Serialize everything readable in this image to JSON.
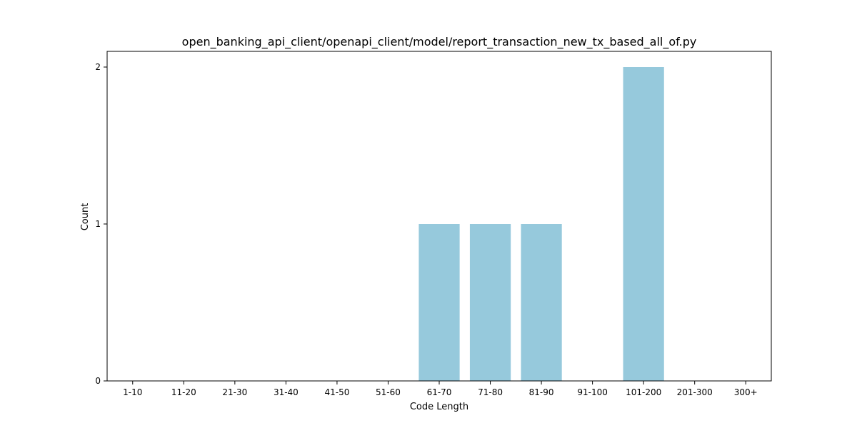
{
  "chart_data": {
    "type": "bar",
    "title": "open_banking_api_client/openapi_client/model/report_transaction_new_tx_based_all_of.py",
    "xlabel": "Code Length",
    "ylabel": "Count",
    "categories": [
      "1-10",
      "11-20",
      "21-30",
      "31-40",
      "41-50",
      "51-60",
      "61-70",
      "71-80",
      "81-90",
      "91-100",
      "101-200",
      "201-300",
      "300+"
    ],
    "values": [
      0,
      0,
      0,
      0,
      0,
      0,
      1,
      1,
      1,
      0,
      2,
      0,
      0
    ],
    "ylim": [
      0,
      2.1
    ],
    "yticks": [
      0,
      1,
      2
    ],
    "bar_color": "#96c9dc",
    "grid": false,
    "legend": "none"
  }
}
